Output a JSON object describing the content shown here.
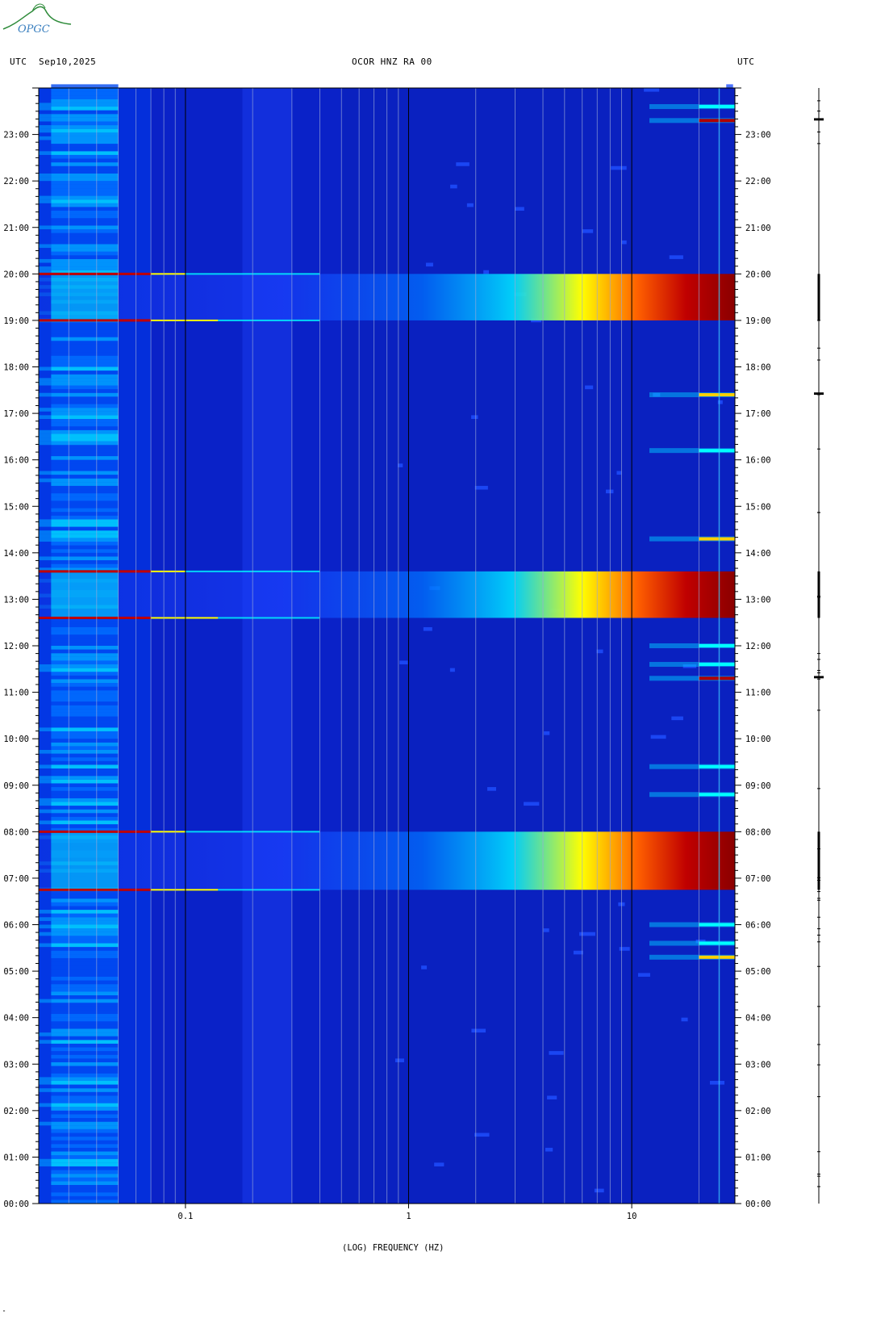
{
  "header": {
    "left_tz": "UTC",
    "date": "Sep10,2025",
    "station": "OCOR HNZ RA 00",
    "right_tz": "UTC"
  },
  "logo": {
    "text": "OPGC"
  },
  "chart_data": {
    "type": "heatmap",
    "title": "OCOR HNZ RA 00",
    "xlabel": "(LOG) FREQUENCY (HZ)",
    "x_scale": "log",
    "xlim": [
      0.022,
      29
    ],
    "x_tick_labels": [
      {
        "value": 0.1,
        "label": "0.1"
      },
      {
        "value": 1,
        "label": "1"
      },
      {
        "value": 10,
        "label": "10"
      }
    ],
    "x_minor_lines": [
      0.03,
      0.04,
      0.05,
      0.06,
      0.07,
      0.08,
      0.09,
      0.2,
      0.3,
      0.4,
      0.5,
      0.6,
      0.7,
      0.8,
      0.9,
      2,
      3,
      4,
      5,
      6,
      7,
      8,
      9,
      20
    ],
    "ylabel": "UTC",
    "ylim_hours": [
      0,
      24
    ],
    "y_tick_labels": [
      "00:00",
      "01:00",
      "02:00",
      "03:00",
      "04:00",
      "05:00",
      "06:00",
      "07:00",
      "08:00",
      "09:00",
      "10:00",
      "11:00",
      "12:00",
      "13:00",
      "14:00",
      "15:00",
      "16:00",
      "17:00",
      "18:00",
      "19:00",
      "20:00",
      "21:00",
      "22:00",
      "23:00"
    ],
    "colormap": [
      "#00008f",
      "#0000ff",
      "#00a8ff",
      "#00ffff",
      "#ffff00",
      "#ff8000",
      "#ff0000",
      "#8b0000"
    ],
    "background_color": "#0a22c8",
    "broadband_events": [
      {
        "start_hour": 6.75,
        "end_hour": 8.0
      },
      {
        "start_hour": 12.6,
        "end_hour": 13.6
      },
      {
        "start_hour": 19.0,
        "end_hour": 20.0
      }
    ],
    "high_freq_bursts": [
      {
        "hour": 5.3,
        "intensity": 0.8
      },
      {
        "hour": 5.6,
        "intensity": 0.6
      },
      {
        "hour": 6.0,
        "intensity": 0.6
      },
      {
        "hour": 8.8,
        "intensity": 0.4
      },
      {
        "hour": 9.4,
        "intensity": 0.4
      },
      {
        "hour": 11.3,
        "intensity": 1.0
      },
      {
        "hour": 11.6,
        "intensity": 0.6
      },
      {
        "hour": 12.0,
        "intensity": 0.4
      },
      {
        "hour": 14.3,
        "intensity": 0.7
      },
      {
        "hour": 16.2,
        "intensity": 0.4
      },
      {
        "hour": 17.4,
        "intensity": 0.8
      },
      {
        "hour": 23.3,
        "intensity": 1.0
      },
      {
        "hour": 23.6,
        "intensity": 0.6
      }
    ],
    "seismic_trace_bursts": [
      {
        "start_hour": 6.75,
        "end_hour": 8.0
      },
      {
        "start_hour": 11.3,
        "end_hour": 11.35
      },
      {
        "start_hour": 12.6,
        "end_hour": 13.6
      },
      {
        "start_hour": 17.4,
        "end_hour": 17.45
      },
      {
        "start_hour": 19.0,
        "end_hour": 20.0
      },
      {
        "start_hour": 23.3,
        "end_hour": 23.35
      }
    ]
  }
}
